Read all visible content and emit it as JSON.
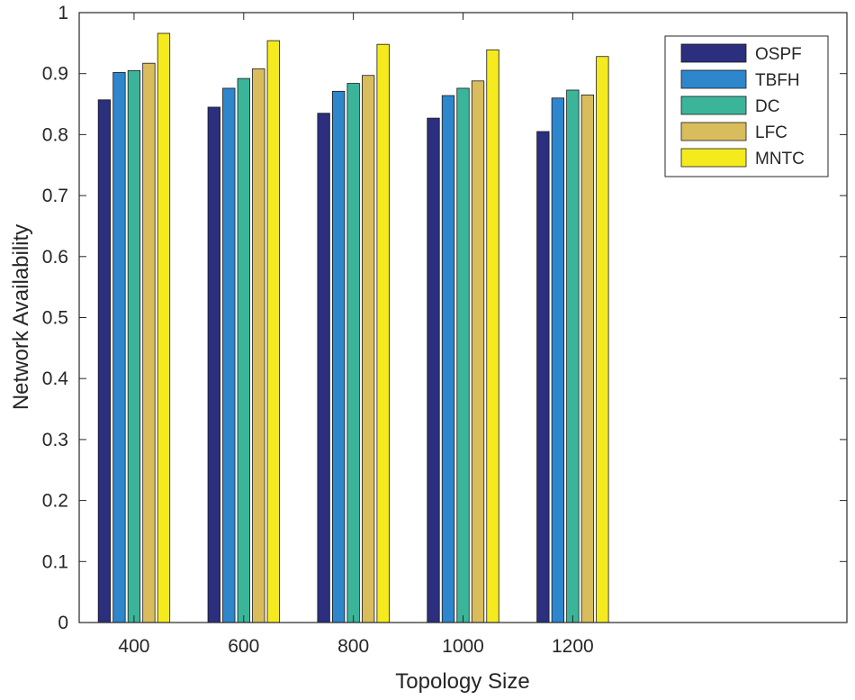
{
  "chart_data": {
    "type": "bar",
    "title": "",
    "xlabel": "Topology Size",
    "ylabel": "Network Availability",
    "categories": [
      "400",
      "600",
      "800",
      "1000",
      "1200"
    ],
    "ylim": [
      0,
      1
    ],
    "yticks": [
      "0",
      "0.1",
      "0.2",
      "0.3",
      "0.4",
      "0.5",
      "0.6",
      "0.7",
      "0.8",
      "0.9",
      "1"
    ],
    "grid": false,
    "legend_position": "top-right",
    "series": [
      {
        "name": "OSPF",
        "color": "#2b2f7e",
        "values": [
          0.857,
          0.845,
          0.835,
          0.827,
          0.805
        ]
      },
      {
        "name": "TBFH",
        "color": "#2e86cc",
        "values": [
          0.902,
          0.876,
          0.871,
          0.864,
          0.86
        ]
      },
      {
        "name": "DC",
        "color": "#3bb59a",
        "values": [
          0.905,
          0.892,
          0.884,
          0.876,
          0.873
        ]
      },
      {
        "name": "LFC",
        "color": "#d9bd5c",
        "values": [
          0.917,
          0.908,
          0.897,
          0.888,
          0.865
        ]
      },
      {
        "name": "MNTC",
        "color": "#f5ea1e",
        "values": [
          0.966,
          0.954,
          0.948,
          0.939,
          0.928
        ]
      }
    ]
  }
}
